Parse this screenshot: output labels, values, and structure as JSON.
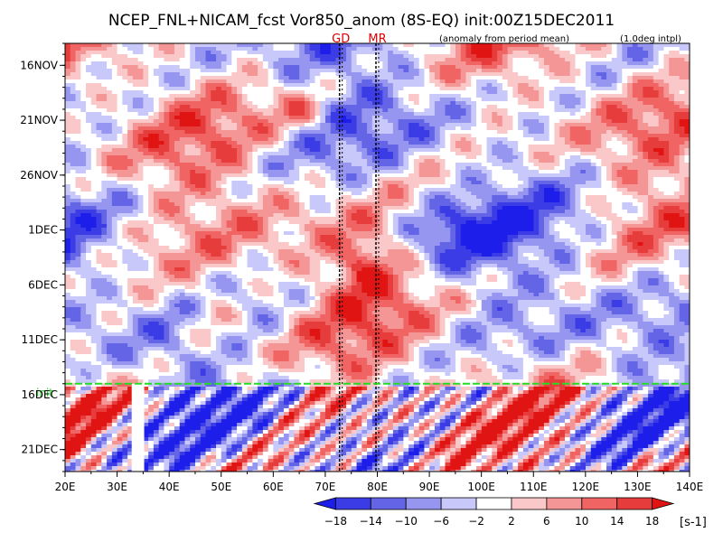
{
  "chart_data": {
    "type": "heatmap",
    "title": "NCEP_FNL+NICAM_fcst Vor850_anom (8S-EQ) init:00Z15DEC2011",
    "subtitle_left": "(anomaly from period mean)",
    "subtitle_right": "(1.0deg intpl)",
    "x_ticks": [
      "20E",
      "30E",
      "40E",
      "50E",
      "60E",
      "70E",
      "80E",
      "90E",
      "100E",
      "110E",
      "120E",
      "130E",
      "140E"
    ],
    "x_range": [
      20,
      140
    ],
    "y_ticks": [
      "16NOV",
      "21NOV",
      "26NOV",
      "1DEC",
      "6DEC",
      "11DEC",
      "16DEC",
      "21DEC"
    ],
    "y_range_days": [
      "14NOV2011",
      "23DEC2011"
    ],
    "markers": [
      {
        "label": "GD",
        "lon": 73
      },
      {
        "label": "MR",
        "lon": 80
      }
    ],
    "init_line": {
      "label": "init",
      "date": "15DEC2011"
    },
    "colorbar": {
      "levels": [
        "-18",
        "-14",
        "-10",
        "-6",
        "-2",
        "2",
        "6",
        "10",
        "14",
        "18"
      ],
      "unit": "[s-1]",
      "colors": [
        "#1e1eeb",
        "#3c3ce6",
        "#6464e6",
        "#9696f0",
        "#c8c8fa",
        "#ffffff",
        "#fac8c8",
        "#f59696",
        "#f06464",
        "#e63c3c",
        "#e11414"
      ]
    }
  }
}
